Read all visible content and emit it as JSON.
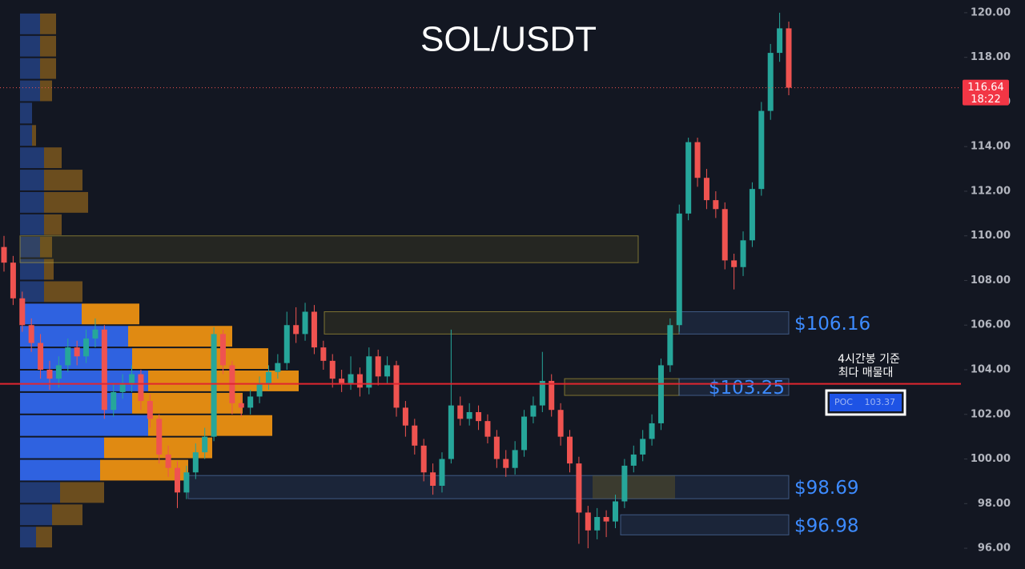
{
  "chart_data": {
    "type": "candlestick",
    "title": "SOL/USDT",
    "ylim": [
      95.07,
      120.57
    ],
    "yticks": [
      {
        "value": 96,
        "label": "96.00"
      },
      {
        "value": 98,
        "label": "98.00"
      },
      {
        "value": 100,
        "label": "100.00"
      },
      {
        "value": 102,
        "label": "102.00"
      },
      {
        "value": 104,
        "label": "104.00"
      },
      {
        "value": 106,
        "label": "106.00"
      },
      {
        "value": 108,
        "label": "108.00"
      },
      {
        "value": 110,
        "label": "110.00"
      },
      {
        "value": 112,
        "label": "112.00"
      },
      {
        "value": 114,
        "label": "114.00"
      },
      {
        "value": 116,
        "label": "116.00"
      },
      {
        "value": 118,
        "label": "118.00"
      },
      {
        "value": 120,
        "label": "120.00"
      }
    ],
    "grid": false,
    "up_color": "#26a69a",
    "down_color": "#ef5350",
    "open": [
      109.5,
      108.8,
      107.2,
      106.0,
      105.2,
      104.0,
      103.6,
      104.2,
      105.0,
      104.6,
      105.4,
      105.8,
      102.2,
      103.0,
      103.4,
      103.8,
      102.6,
      101.8,
      100.2,
      99.6,
      98.5,
      99.4,
      100.3,
      101.0,
      105.6,
      104.2,
      102.5,
      102.3,
      102.8,
      103.4,
      103.9,
      104.3,
      106.0,
      105.6,
      106.6,
      105.0,
      104.4,
      103.6,
      103.4,
      103.8,
      103.2,
      104.6,
      103.7,
      104.2,
      102.3,
      101.5,
      100.6,
      99.4,
      98.8,
      100.0,
      102.4,
      101.8,
      102.1,
      101.7,
      101.0,
      100.0,
      99.6,
      100.4,
      101.9,
      102.4,
      103.5,
      102.2,
      101.0,
      99.8,
      97.6,
      96.8,
      97.4,
      97.2,
      98.1,
      99.7,
      100.2,
      100.9,
      101.6,
      104.2,
      106.0,
      111.0,
      114.2,
      112.6,
      111.6,
      111.2,
      108.9,
      108.6,
      109.8,
      112.1,
      115.6,
      118.2,
      119.3
    ],
    "high": [
      110.0,
      109.1,
      107.5,
      106.3,
      105.6,
      104.4,
      104.6,
      105.4,
      105.3,
      105.8,
      106.3,
      106.0,
      103.4,
      103.8,
      104.2,
      104.0,
      102.9,
      102.0,
      100.6,
      99.9,
      99.7,
      100.7,
      101.4,
      105.9,
      105.8,
      104.4,
      102.9,
      103.1,
      103.7,
      104.2,
      104.7,
      106.6,
      106.8,
      107.0,
      106.9,
      105.3,
      104.7,
      104.0,
      104.6,
      104.1,
      105.0,
      104.9,
      104.6,
      104.4,
      102.6,
      101.8,
      100.9,
      99.8,
      100.3,
      105.8,
      102.8,
      102.5,
      102.4,
      102.0,
      101.3,
      100.4,
      100.8,
      102.2,
      102.8,
      104.8,
      103.8,
      102.5,
      101.3,
      100.1,
      97.9,
      97.8,
      97.7,
      98.4,
      100.0,
      100.6,
      101.3,
      102.0,
      104.5,
      106.3,
      111.4,
      114.4,
      114.4,
      113.0,
      112.0,
      111.5,
      109.2,
      110.2,
      112.4,
      116.0,
      118.6,
      120.0,
      119.6
    ],
    "low": [
      108.4,
      106.9,
      105.7,
      104.8,
      103.6,
      103.1,
      103.2,
      103.9,
      104.2,
      104.3,
      105.0,
      101.8,
      101.9,
      102.7,
      103.0,
      102.2,
      101.4,
      99.8,
      99.2,
      97.8,
      98.2,
      99.1,
      100.0,
      100.8,
      103.8,
      102.0,
      101.9,
      102.0,
      102.5,
      103.1,
      103.6,
      104.0,
      105.2,
      105.3,
      104.7,
      104.0,
      103.2,
      103.0,
      103.1,
      102.8,
      102.9,
      103.3,
      103.4,
      101.9,
      101.0,
      100.2,
      99.0,
      98.4,
      98.5,
      99.8,
      101.5,
      101.5,
      101.3,
      100.7,
      99.6,
      99.2,
      99.3,
      100.1,
      101.6,
      102.1,
      101.9,
      100.6,
      99.4,
      96.2,
      96.0,
      96.4,
      96.5,
      96.9,
      97.8,
      99.4,
      99.9,
      100.6,
      101.3,
      103.9,
      105.7,
      110.7,
      112.2,
      111.2,
      110.8,
      108.5,
      107.6,
      108.2,
      109.5,
      111.8,
      115.2,
      117.8,
      116.3
    ],
    "close": [
      108.8,
      107.2,
      106.0,
      105.2,
      104.0,
      103.6,
      104.2,
      105.0,
      104.6,
      105.4,
      105.8,
      102.2,
      103.0,
      103.4,
      103.8,
      102.6,
      101.8,
      100.2,
      99.6,
      98.5,
      99.4,
      100.3,
      101.0,
      105.6,
      104.2,
      102.5,
      102.3,
      102.8,
      103.4,
      103.9,
      104.3,
      106.0,
      105.6,
      106.6,
      105.0,
      104.4,
      103.6,
      103.4,
      103.8,
      103.2,
      104.6,
      103.7,
      104.2,
      102.3,
      101.5,
      100.6,
      99.4,
      98.8,
      100.0,
      102.4,
      101.8,
      102.1,
      101.7,
      101.0,
      100.0,
      99.6,
      100.4,
      101.9,
      102.4,
      103.5,
      102.2,
      101.0,
      99.8,
      97.6,
      96.8,
      97.4,
      97.2,
      98.1,
      99.7,
      100.2,
      100.9,
      101.6,
      104.2,
      106.0,
      111.0,
      114.2,
      112.6,
      111.6,
      111.2,
      108.9,
      108.6,
      109.8,
      112.1,
      115.6,
      118.2,
      119.3,
      116.64
    ],
    "last_price": 116.64,
    "countdown": "18:22",
    "profile": {
      "prices": [
        119.5,
        118.5,
        117.5,
        116.5,
        115.5,
        114.5,
        113.5,
        112.5,
        111.5,
        110.5,
        109.5,
        108.5,
        107.5,
        106.5,
        105.5,
        104.5,
        103.5,
        102.5,
        101.5,
        100.5,
        99.5,
        98.5,
        97.5,
        96.5
      ],
      "buy": [
        25,
        25,
        25,
        25,
        15,
        15,
        30,
        30,
        30,
        30,
        25,
        30,
        30,
        77,
        135,
        140,
        160,
        140,
        160,
        105,
        100,
        50,
        40,
        20
      ],
      "sell": [
        20,
        20,
        20,
        15,
        0,
        5,
        22,
        48,
        55,
        22,
        15,
        12,
        48,
        72,
        130,
        170,
        188,
        138,
        155,
        135,
        110,
        55,
        38,
        20
      ],
      "value_area": [
        99,
        107
      ]
    },
    "zones": [
      {
        "low": 108.8,
        "high": 110.0
      },
      {
        "low": 105.6,
        "high": 106.6,
        "value": 106.16,
        "label": "$106.16"
      },
      {
        "low": 102.85,
        "high": 103.6,
        "value": 103.25,
        "label": "$103.25"
      },
      {
        "low": 98.22,
        "high": 99.26,
        "value": 98.69,
        "label": "$98.69"
      },
      {
        "low": 96.6,
        "high": 97.5,
        "value": 96.98,
        "label": "$96.98"
      }
    ],
    "poc": 103.37,
    "poc_label": "POC",
    "poc_value_label": "103.37",
    "annotation": [
      "4시간봉 기준",
      "최다 매물대"
    ]
  }
}
